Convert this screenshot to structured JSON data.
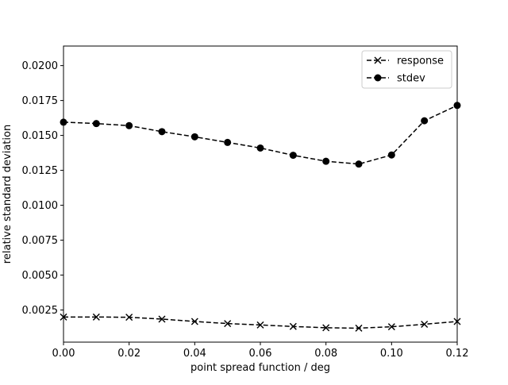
{
  "chart_data": {
    "type": "line",
    "title": "",
    "xlabel": "point spread function / deg",
    "ylabel": "relative standard deviation",
    "xlim": [
      0.0,
      0.12
    ],
    "ylim": [
      0.0002,
      0.0214
    ],
    "x_ticks": [
      0.0,
      0.02,
      0.04,
      0.06,
      0.08,
      0.1,
      0.12
    ],
    "x_tick_labels": [
      "0.00",
      "0.02",
      "0.04",
      "0.06",
      "0.08",
      "0.10",
      "0.12"
    ],
    "y_ticks": [
      0.0025,
      0.005,
      0.0075,
      0.01,
      0.0125,
      0.015,
      0.0175,
      0.02
    ],
    "y_tick_labels": [
      "0.0025",
      "0.0050",
      "0.0075",
      "0.0100",
      "0.0125",
      "0.0150",
      "0.0175",
      "0.0200"
    ],
    "grid": false,
    "legend_position": "top-right",
    "x": [
      0.0,
      0.01,
      0.02,
      0.03,
      0.04,
      0.05,
      0.06,
      0.07,
      0.08,
      0.09,
      0.1,
      0.11,
      0.12
    ],
    "series": [
      {
        "name": "response",
        "marker": "x",
        "line_style": "dashed",
        "color": "#000000",
        "values": [
          0.002,
          0.002,
          0.00198,
          0.00185,
          0.00168,
          0.00153,
          0.00143,
          0.00132,
          0.00123,
          0.0012,
          0.0013,
          0.00148,
          0.00168
        ]
      },
      {
        "name": "stdev",
        "marker": "o",
        "line_style": "dashed",
        "color": "#000000",
        "values": [
          0.01595,
          0.01585,
          0.0157,
          0.01527,
          0.0149,
          0.0145,
          0.0141,
          0.01358,
          0.01315,
          0.01295,
          0.0136,
          0.01605,
          0.01715
        ]
      }
    ]
  }
}
